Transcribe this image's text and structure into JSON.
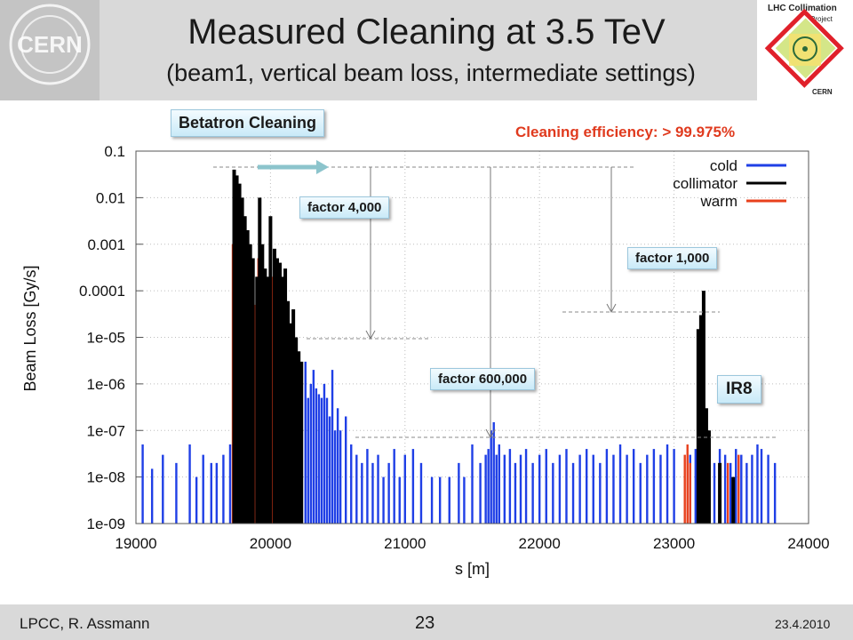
{
  "slide": {
    "title": "Measured Cleaning at 3.5 TeV",
    "subtitle": "(beam1, vertical beam loss, intermediate settings)",
    "footer_left": "LPCC, R. Assmann",
    "page_number": "23",
    "date": "23.4.2010",
    "cern_logo_text": "CERN",
    "collab_logo_text": [
      "LHC Collimation",
      "Project",
      "CERN"
    ]
  },
  "annotations": {
    "betatron": "Betatron Cleaning",
    "efficiency": "Cleaning efficiency:  > 99.975%",
    "factor_4000": "factor 4,000",
    "factor_600000": "factor 600,000",
    "factor_1000": "factor 1,000",
    "ir8": "IR8"
  },
  "colors": {
    "cold": "#1f3fe6",
    "collimator": "#000000",
    "warm": "#e8401c",
    "annotation_red": "#e03a1e",
    "dashed": "#888888"
  },
  "chart_data": {
    "type": "bar",
    "xlabel": "s [m]",
    "ylabel": "Beam Loss [Gy/s]",
    "xlim": [
      19000,
      24000
    ],
    "ylim": [
      1e-09,
      0.1
    ],
    "yscale": "log",
    "x_ticks": [
      19000,
      20000,
      21000,
      22000,
      23000,
      24000
    ],
    "x_tick_labels": [
      "19000",
      "20000",
      "21000",
      "22000",
      "23000",
      "24000"
    ],
    "y_ticks": [
      0.1,
      0.01,
      0.001,
      0.0001,
      1e-05,
      1e-06,
      1e-07,
      1e-08,
      1e-09
    ],
    "y_tick_labels": [
      "0.1",
      "0.01",
      "0.001",
      "0.0001",
      "1e-05",
      "1e-06",
      "1e-07",
      "1e-08",
      "1e-09"
    ],
    "legend_position": "top-right",
    "series": [
      {
        "name": "cold",
        "color": "#1f3fe6",
        "x": [
          19050,
          19120,
          19200,
          19300,
          19400,
          19450,
          19500,
          19560,
          19600,
          19650,
          19700,
          20260,
          20280,
          20300,
          20320,
          20340,
          20360,
          20380,
          20400,
          20420,
          20440,
          20460,
          20480,
          20500,
          20520,
          20560,
          20600,
          20640,
          20680,
          20720,
          20760,
          20800,
          20840,
          20880,
          20920,
          20960,
          21000,
          21060,
          21120,
          21200,
          21260,
          21330,
          21400,
          21440,
          21500,
          21560,
          21600,
          21620,
          21640,
          21660,
          21680,
          21700,
          21740,
          21780,
          21820,
          21860,
          21900,
          21950,
          22000,
          22050,
          22100,
          22150,
          22200,
          22250,
          22300,
          22350,
          22400,
          22450,
          22500,
          22550,
          22600,
          22650,
          22700,
          22750,
          22800,
          22850,
          22900,
          22950,
          23000,
          23120,
          23160,
          23260,
          23300,
          23340,
          23380,
          23420,
          23460,
          23500,
          23540,
          23580,
          23620,
          23650,
          23700,
          23750
        ],
        "values": [
          5e-08,
          1.5e-08,
          3e-08,
          2e-08,
          5e-08,
          1e-08,
          3e-08,
          2e-08,
          2e-08,
          3e-08,
          5e-08,
          3e-06,
          5e-07,
          1e-06,
          2e-06,
          8e-07,
          6e-07,
          5e-07,
          1e-06,
          5e-07,
          2e-07,
          2e-06,
          1e-07,
          3e-07,
          1e-07,
          2e-07,
          5e-08,
          3e-08,
          2e-08,
          4e-08,
          2e-08,
          3e-08,
          1e-08,
          2e-08,
          4e-08,
          1e-08,
          3e-08,
          4e-08,
          2e-08,
          1e-08,
          1e-08,
          1e-08,
          2e-08,
          1e-08,
          5e-08,
          2e-08,
          3e-08,
          4e-08,
          1e-07,
          1.5e-07,
          3e-08,
          5e-08,
          3e-08,
          4e-08,
          2e-08,
          3e-08,
          4e-08,
          2e-08,
          3e-08,
          4e-08,
          2e-08,
          3e-08,
          4e-08,
          2e-08,
          3e-08,
          4e-08,
          3e-08,
          2e-08,
          4e-08,
          3e-08,
          5e-08,
          3e-08,
          4e-08,
          2e-08,
          3e-08,
          4e-08,
          3e-08,
          5e-08,
          4e-08,
          3e-08,
          4e-08,
          3e-08,
          2e-08,
          4e-08,
          3e-08,
          2e-08,
          4e-08,
          3e-08,
          2e-08,
          3e-08,
          5e-08,
          4e-08,
          3e-08,
          2e-08
        ]
      },
      {
        "name": "collimator",
        "color": "#000000",
        "x": [
          19730,
          19750,
          19770,
          19790,
          19810,
          19830,
          19850,
          19870,
          19900,
          19920,
          19940,
          19960,
          19980,
          20000,
          20030,
          20050,
          20070,
          20090,
          20110,
          20130,
          20150,
          20170,
          20190,
          20210,
          20230,
          23180,
          23200,
          23220,
          23240,
          23260,
          23340,
          23440
        ],
        "values": [
          0.04,
          0.03,
          0.02,
          0.01,
          0.004,
          0.002,
          0.001,
          0.0005,
          0.0002,
          0.01,
          0.001,
          0.0003,
          0.0002,
          0.004,
          0.0008,
          0.0005,
          0.0004,
          0.0002,
          0.0003,
          6e-05,
          2e-05,
          4e-05,
          1e-05,
          5e-06,
          3e-06,
          1.5e-05,
          3e-05,
          0.0001,
          3e-07,
          1e-07,
          2e-08,
          1e-08
        ]
      },
      {
        "name": "warm",
        "color": "#e8401c",
        "x": [
          19720,
          19740,
          19760,
          19780,
          19800,
          19820,
          19840,
          19860,
          19880,
          19910,
          19930,
          19950,
          19970,
          19990,
          20010,
          20040,
          20060,
          20080,
          20100,
          20120,
          20140,
          20160,
          20180,
          20200,
          23080,
          23100,
          23120,
          23400,
          23480
        ],
        "values": [
          0.001,
          0.01,
          0.003,
          0.001,
          0.0005,
          0.0003,
          0.0002,
          0.0001,
          5e-05,
          0.0005,
          0.0002,
          0.0001,
          5e-05,
          0.0001,
          0.0002,
          8e-05,
          5e-05,
          3e-05,
          4e-05,
          2e-05,
          1e-05,
          8e-06,
          5e-06,
          2e-06,
          3e-08,
          5e-08,
          2e-08,
          2e-08,
          3e-08
        ]
      }
    ]
  }
}
